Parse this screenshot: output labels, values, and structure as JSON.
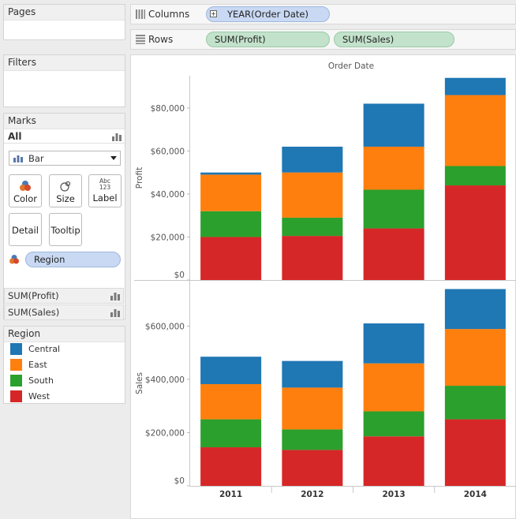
{
  "panels": {
    "pages": {
      "title": "Pages"
    },
    "filters": {
      "title": "Filters"
    },
    "marks": {
      "title": "Marks",
      "all_label": "All",
      "mark_type": "Bar",
      "buttons": {
        "color": "Color",
        "size": "Size",
        "label": "Label",
        "detail": "Detail",
        "tooltip": "Tooltip"
      },
      "label_icon_text": [
        "Abc",
        "123"
      ],
      "color_pill": "Region",
      "measures": [
        "SUM(Profit)",
        "SUM(Sales)"
      ]
    },
    "legend": {
      "title": "Region",
      "items": [
        {
          "label": "Central",
          "color": "#1f77b4"
        },
        {
          "label": "East",
          "color": "#ff7f0e"
        },
        {
          "label": "South",
          "color": "#2ca02c"
        },
        {
          "label": "West",
          "color": "#d62728"
        }
      ]
    }
  },
  "shelves": {
    "columns": {
      "label": "Columns",
      "pills": [
        "YEAR(Order Date)"
      ]
    },
    "rows": {
      "label": "Rows",
      "pills": [
        "SUM(Profit)",
        "SUM(Sales)"
      ]
    }
  },
  "chart_data": {
    "type": "bar",
    "stacked": true,
    "title": "Order Date",
    "categories": [
      "2011",
      "2012",
      "2013",
      "2014"
    ],
    "colors": {
      "Central": "#1f77b4",
      "East": "#ff7f0e",
      "South": "#2ca02c",
      "West": "#d62728"
    },
    "panes": [
      {
        "ylabel": "Profit",
        "ylim": [
          0,
          95000
        ],
        "yticks": [
          0,
          20000,
          40000,
          60000,
          80000
        ],
        "tick_labels": [
          "$0",
          "$20,000",
          "$40,000",
          "$60,000",
          "$80,000"
        ],
        "series": [
          {
            "name": "West",
            "values": [
              20000,
              20500,
              24000,
              44000
            ]
          },
          {
            "name": "South",
            "values": [
              12000,
              8500,
              18000,
              9000
            ]
          },
          {
            "name": "East",
            "values": [
              17000,
              21000,
              20000,
              33000
            ]
          },
          {
            "name": "Central",
            "values": [
              1000,
              12000,
              20000,
              8000
            ]
          }
        ]
      },
      {
        "ylabel": "Sales",
        "ylim": [
          0,
          770000
        ],
        "yticks": [
          0,
          200000,
          400000,
          600000
        ],
        "tick_labels": [
          "$0",
          "$200,000",
          "$400,000",
          "$600,000"
        ],
        "series": [
          {
            "name": "West",
            "values": [
              145000,
              135000,
              186000,
              250000
            ]
          },
          {
            "name": "South",
            "values": [
              105000,
              77000,
              94000,
              126000
            ]
          },
          {
            "name": "East",
            "values": [
              132000,
              157000,
              180000,
              213000
            ]
          },
          {
            "name": "Central",
            "values": [
              103000,
              100000,
              150000,
              150000
            ]
          }
        ]
      }
    ]
  }
}
